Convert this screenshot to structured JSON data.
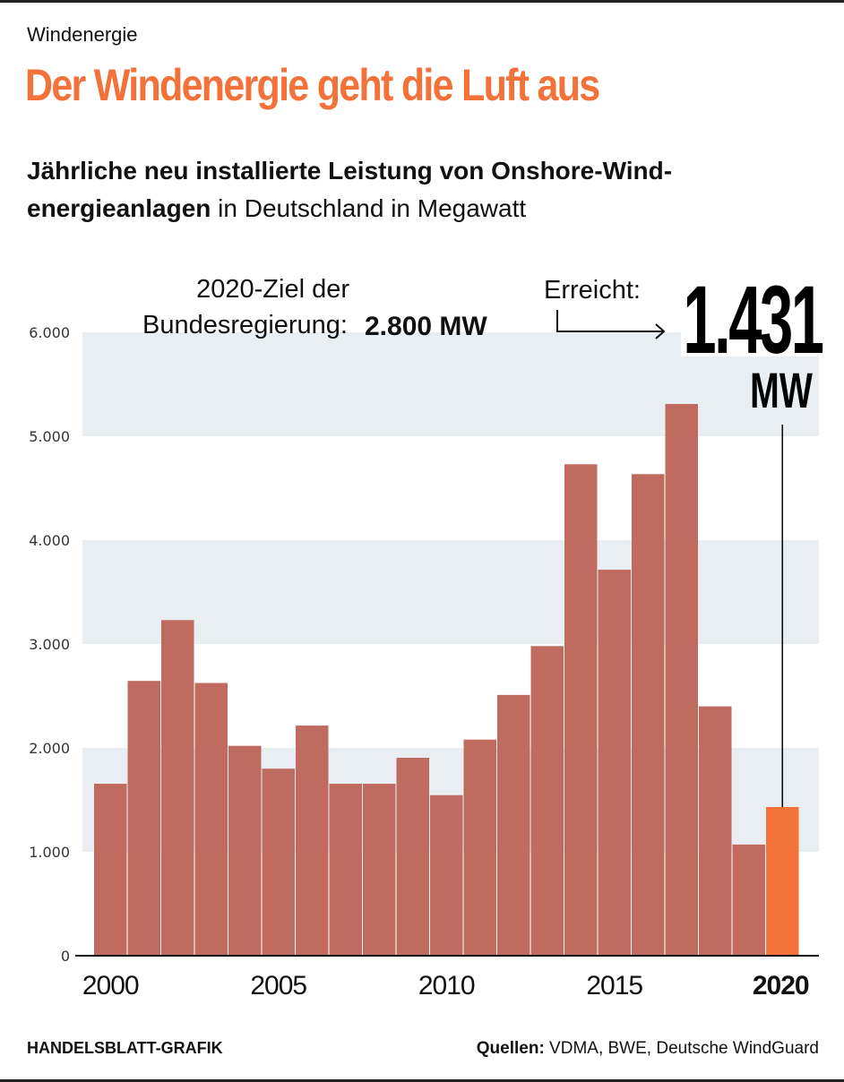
{
  "header": {
    "kicker": "Windenergie",
    "headline": "Der Windenergie geht die Luft aus",
    "subtitle_bold": "Jährliche neu installierte Leistung von Onshore-Wind-energieanlagen",
    "subtitle_bold_line1": "Jährliche neu installierte Leistung von Onshore-Wind-",
    "subtitle_bold_line2": "energieanlagen",
    "subtitle_regular": " in Deutschland in Megawatt"
  },
  "annotations": {
    "goal_label_line1": "2020-Ziel der",
    "goal_label_line2": "Bundesregierung:",
    "goal_value": "2.800 MW",
    "reached_label": "Erreicht:",
    "reached_value": "1.431",
    "reached_unit": "MW"
  },
  "footer": {
    "credit": "HANDELSBLATT-GRAFIK",
    "sources_label": "Quellen:",
    "sources": " VDMA, BWE, Deutsche WindGuard"
  },
  "colors": {
    "bar": "#bf6b5f",
    "highlight": "#f37239",
    "band": "#e8eef1",
    "text": "#111111"
  },
  "chart_data": {
    "type": "bar",
    "title": "Jährliche neu installierte Leistung von Onshore-Windenergieanlagen in Deutschland in Megawatt",
    "xlabel": "",
    "ylabel": "Megawatt",
    "ylim": [
      0,
      6000
    ],
    "yticks": [
      0,
      1000,
      2000,
      3000,
      4000,
      5000,
      6000
    ],
    "ytick_labels": [
      "0",
      "1.000",
      "2.000",
      "3.000",
      "4.000",
      "5.000",
      "6.000"
    ],
    "xtick_labels": [
      "2000",
      "2005",
      "2010",
      "2015",
      "2020"
    ],
    "xtick_years": [
      2000,
      2005,
      2010,
      2015,
      2020
    ],
    "highlight_year": 2020,
    "grid": "alternating horizontal bands",
    "categories": [
      2000,
      2001,
      2002,
      2003,
      2004,
      2005,
      2006,
      2007,
      2008,
      2009,
      2010,
      2011,
      2012,
      2013,
      2014,
      2015,
      2016,
      2017,
      2018,
      2019,
      2020
    ],
    "values": [
      1655,
      2645,
      3230,
      2625,
      2020,
      1800,
      2215,
      1655,
      1655,
      1905,
      1545,
      2080,
      2510,
      2980,
      4730,
      3715,
      4635,
      5310,
      2400,
      1070,
      1431
    ],
    "reference_target": 2800
  }
}
